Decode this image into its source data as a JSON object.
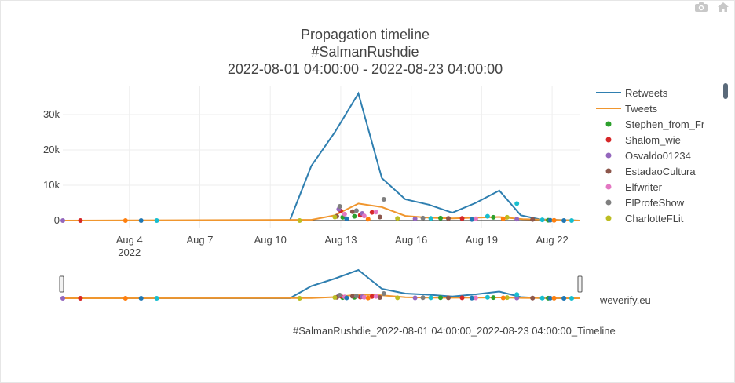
{
  "title_lines": [
    "Propagation timeline",
    "#SalmanRushdie",
    "2022-08-01 04:00:00 - 2022-08-23 04:00:00"
  ],
  "watermark": "weverify.eu",
  "caption": "#SalmanRushdie_2022-08-01 04:00:00_2022-08-23 04:00:00_Timeline",
  "modebar": [
    {
      "icon": "camera-icon"
    },
    {
      "icon": "home-icon"
    }
  ],
  "colors": {
    "retweets": "#2f7fb0",
    "tweets": "#f0962e"
  },
  "chart_data": {
    "type": "line",
    "title": "",
    "xlabel": "",
    "ylabel": "",
    "x_ticks": [
      {
        "date": "2022-08-04",
        "label": "Aug 4",
        "sub": "2022"
      },
      {
        "date": "2022-08-07",
        "label": "Aug 7",
        "sub": ""
      },
      {
        "date": "2022-08-10",
        "label": "Aug 10",
        "sub": ""
      },
      {
        "date": "2022-08-13",
        "label": "Aug 13",
        "sub": ""
      },
      {
        "date": "2022-08-16",
        "label": "Aug 16",
        "sub": ""
      },
      {
        "date": "2022-08-19",
        "label": "Aug 19",
        "sub": ""
      },
      {
        "date": "2022-08-22",
        "label": "Aug 22",
        "sub": ""
      }
    ],
    "y_ticks": [
      {
        "value": 0,
        "label": "0"
      },
      {
        "value": 10000,
        "label": "10k"
      },
      {
        "value": 20000,
        "label": "20k"
      },
      {
        "value": 30000,
        "label": "30k"
      }
    ],
    "xlim": [
      "2022-08-01T04:00",
      "2022-08-23T04:00"
    ],
    "ylim": [
      -2000,
      38000
    ],
    "grid": true,
    "legend_position": "right",
    "lines": [
      {
        "name": "Retweets",
        "color": "#2f7fb0",
        "points": [
          [
            "2022-08-01T04:00",
            0
          ],
          [
            "2022-08-10T20:00",
            0
          ],
          [
            "2022-08-11T18:00",
            15500
          ],
          [
            "2022-08-12T18:00",
            25000
          ],
          [
            "2022-08-13T18:00",
            36000
          ],
          [
            "2022-08-14T18:00",
            12000
          ],
          [
            "2022-08-15T18:00",
            6000
          ],
          [
            "2022-08-16T18:00",
            4500
          ],
          [
            "2022-08-17T18:00",
            2200
          ],
          [
            "2022-08-18T18:00",
            5000
          ],
          [
            "2022-08-19T18:00",
            8500
          ],
          [
            "2022-08-20T16:00",
            1500
          ],
          [
            "2022-08-21T12:00",
            300
          ],
          [
            "2022-08-23T04:00",
            0
          ]
        ]
      },
      {
        "name": "Tweets",
        "color": "#f0962e",
        "points": [
          [
            "2022-08-01T04:00",
            0
          ],
          [
            "2022-08-11T18:00",
            200
          ],
          [
            "2022-08-12T18:00",
            1500
          ],
          [
            "2022-08-13T18:00",
            4800
          ],
          [
            "2022-08-14T18:00",
            3800
          ],
          [
            "2022-08-15T18:00",
            1300
          ],
          [
            "2022-08-16T18:00",
            800
          ],
          [
            "2022-08-17T18:00",
            600
          ],
          [
            "2022-08-18T18:00",
            800
          ],
          [
            "2022-08-19T18:00",
            1000
          ],
          [
            "2022-08-20T18:00",
            400
          ],
          [
            "2022-08-23T04:00",
            0
          ]
        ]
      }
    ],
    "users": [
      {
        "name": "Stephen_from_Fr",
        "color": "#2ca02c",
        "points": [
          [
            "2022-08-13T02:00",
            900
          ],
          [
            "2022-08-13T14:00",
            1200
          ],
          [
            "2022-08-17T06:00",
            700
          ],
          [
            "2022-08-19T12:00",
            900
          ],
          [
            "2022-08-21T20:00",
            100
          ]
        ]
      },
      {
        "name": "Shalom_wie",
        "color": "#d62728",
        "points": [
          [
            "2022-08-01T22:00",
            0
          ],
          [
            "2022-08-13T00:00",
            2700
          ],
          [
            "2022-08-13T20:00",
            1500
          ],
          [
            "2022-08-14T08:00",
            2300
          ],
          [
            "2022-08-18T04:00",
            600
          ]
        ]
      },
      {
        "name": "Osvaldo01234",
        "color": "#9467bd",
        "points": [
          [
            "2022-08-01T04:00",
            0
          ],
          [
            "2022-08-12T22:00",
            3200
          ],
          [
            "2022-08-13T22:00",
            2000
          ],
          [
            "2022-08-16T04:00",
            500
          ],
          [
            "2022-08-20T12:00",
            400
          ]
        ]
      },
      {
        "name": "EstadaoCultura",
        "color": "#8c564b",
        "points": [
          [
            "2022-08-12T20:00",
            1200
          ],
          [
            "2022-08-13T12:00",
            2500
          ],
          [
            "2022-08-14T16:00",
            1000
          ],
          [
            "2022-08-17T14:00",
            600
          ],
          [
            "2022-08-21T04:00",
            300
          ]
        ]
      },
      {
        "name": "Elfwriter",
        "color": "#e377c2",
        "points": [
          [
            "2022-08-13T04:00",
            1800
          ],
          [
            "2022-08-14T00:00",
            1300
          ],
          [
            "2022-08-14T12:00",
            2400
          ],
          [
            "2022-08-18T18:00",
            500
          ]
        ]
      },
      {
        "name": "ElProfeShow",
        "color": "#7f7f7f",
        "points": [
          [
            "2022-08-12T23:00",
            4000
          ],
          [
            "2022-08-13T16:00",
            2800
          ],
          [
            "2022-08-14T20:00",
            6000
          ],
          [
            "2022-08-16T12:00",
            700
          ]
        ]
      },
      {
        "name": "CharlotteFLit",
        "color": "#bcbd22",
        "points": [
          [
            "2022-08-11T06:00",
            0
          ],
          [
            "2022-08-12T18:00",
            1000
          ],
          [
            "2022-08-15T10:00",
            600
          ],
          [
            "2022-08-20T02:00",
            900
          ]
        ]
      },
      {
        "name": "",
        "color": "#17becf",
        "points": [
          [
            "2022-08-05T04:00",
            0
          ],
          [
            "2022-08-16T20:00",
            600
          ],
          [
            "2022-08-19T06:00",
            1200
          ],
          [
            "2022-08-20T12:00",
            4800
          ],
          [
            "2022-08-21T14:00",
            200
          ],
          [
            "2022-08-22T20:00",
            0
          ]
        ]
      },
      {
        "name": "",
        "color": "#1f77b4",
        "points": [
          [
            "2022-08-04T12:00",
            0
          ],
          [
            "2022-08-13T06:00",
            500
          ],
          [
            "2022-08-18T14:00",
            300
          ],
          [
            "2022-08-21T22:00",
            100
          ],
          [
            "2022-08-22T12:00",
            0
          ]
        ]
      },
      {
        "name": "",
        "color": "#ff7f0e",
        "points": [
          [
            "2022-08-03T20:00",
            0
          ],
          [
            "2022-08-14T04:00",
            400
          ],
          [
            "2022-08-19T22:00",
            500
          ],
          [
            "2022-08-22T02:00",
            50
          ]
        ]
      }
    ]
  }
}
